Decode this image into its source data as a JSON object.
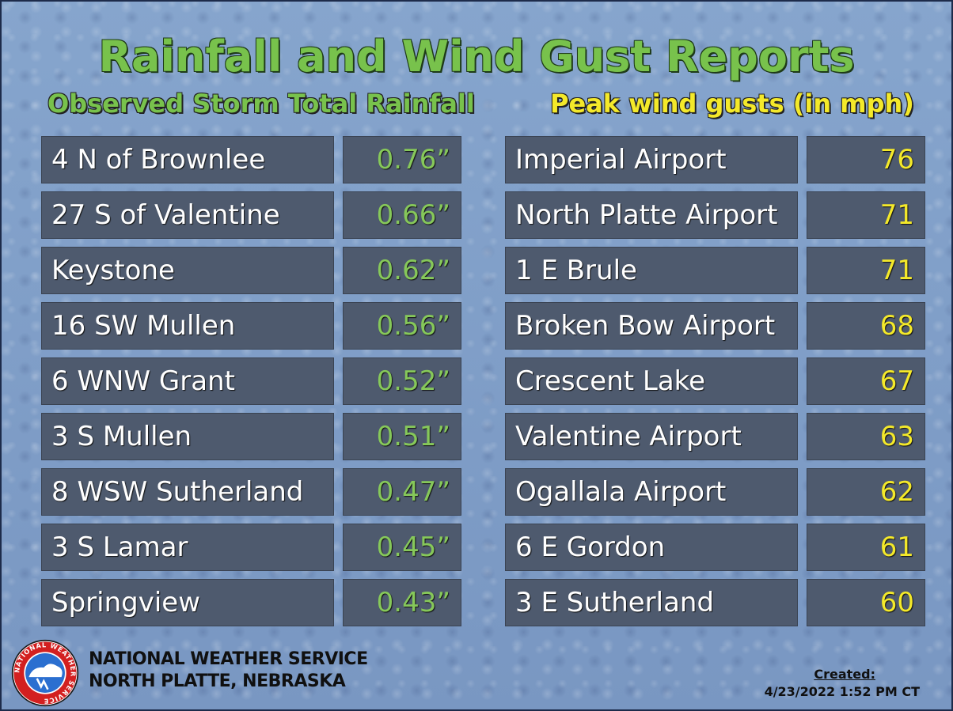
{
  "title": "Rainfall and Wind Gust Reports",
  "rainfall": {
    "heading": "Observed Storm Total Rainfall",
    "rows": [
      {
        "location": "4 N of Brownlee",
        "value": "0.76”"
      },
      {
        "location": "27 S of Valentine",
        "value": "0.66”"
      },
      {
        "location": "Keystone",
        "value": "0.62”"
      },
      {
        "location": "16 SW Mullen",
        "value": "0.56”"
      },
      {
        "location": "6 WNW Grant",
        "value": "0.52”"
      },
      {
        "location": "3 S Mullen",
        "value": "0.51”"
      },
      {
        "location": "8 WSW Sutherland",
        "value": "0.47”"
      },
      {
        "location": "3 S Lamar",
        "value": "0.45”"
      },
      {
        "location": "Springview",
        "value": "0.43”"
      }
    ]
  },
  "wind": {
    "heading": "Peak wind gusts (in mph)",
    "rows": [
      {
        "location": "Imperial Airport",
        "value": "76"
      },
      {
        "location": "North Platte Airport",
        "value": "71"
      },
      {
        "location": "1 E Brule",
        "value": "71"
      },
      {
        "location": "Broken Bow Airport",
        "value": "68"
      },
      {
        "location": "Crescent Lake",
        "value": "67"
      },
      {
        "location": "Valentine Airport",
        "value": "63"
      },
      {
        "location": "Ogallala Airport",
        "value": "62"
      },
      {
        "location": "6 E Gordon",
        "value": "61"
      },
      {
        "location": "3 E Sutherland",
        "value": "60"
      }
    ]
  },
  "footer": {
    "org_line1": "NATIONAL WEATHER SERVICE",
    "org_line2": "NORTH PLATTE, NEBRASKA",
    "created_label": "Created:",
    "created_value": "4/23/2022 1:52 PM CT",
    "logo_text": "NATIONAL WEATHER SERVICE"
  },
  "colors": {
    "rain_accent": "#78c24c",
    "wind_accent": "#f4e92a",
    "cell_bg": "#4e5a6e"
  }
}
